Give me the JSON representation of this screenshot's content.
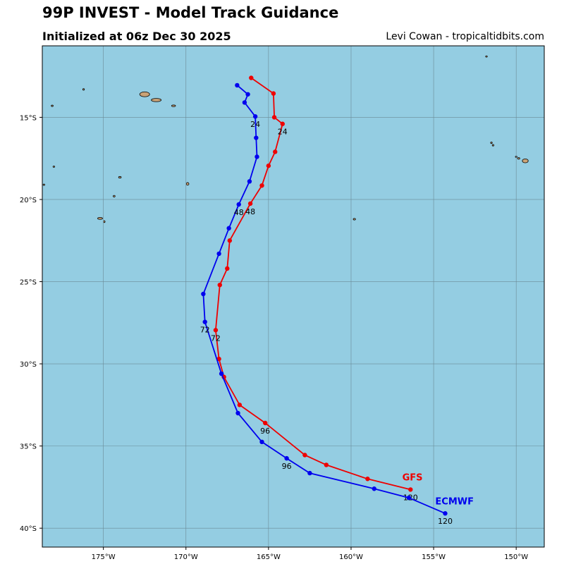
{
  "header": {
    "title": "99P INVEST - Model Track Guidance",
    "subtitle": "Initialized at 06z Dec 30 2025",
    "credit": "Levi Cowan - tropicaltidbits.com"
  },
  "colors": {
    "ocean": "#94cde2",
    "land": "#c9a276",
    "grid": "#6a8a96",
    "gfs": "#ee0000",
    "ecmwf": "#0000ee"
  },
  "map": {
    "lon_range": [
      -178.7,
      -148.3
    ],
    "lat_range": [
      -41.15,
      -10.65
    ],
    "lon_ticks": [
      {
        "value": -175,
        "label": "175°W"
      },
      {
        "value": -170,
        "label": "170°W"
      },
      {
        "value": -165,
        "label": "165°W"
      },
      {
        "value": -160,
        "label": "160°W"
      },
      {
        "value": -155,
        "label": "155°W"
      },
      {
        "value": -150,
        "label": "150°W"
      }
    ],
    "lat_ticks": [
      {
        "value": -15,
        "label": "15°S"
      },
      {
        "value": -20,
        "label": "20°S"
      },
      {
        "value": -25,
        "label": "25°S"
      },
      {
        "value": -30,
        "label": "30°S"
      },
      {
        "value": -35,
        "label": "35°S"
      },
      {
        "value": -40,
        "label": "40°S"
      }
    ],
    "islands": [
      {
        "name": "savaii",
        "lon": -172.5,
        "lat": -13.6,
        "rx": 0.3,
        "ry": 0.15
      },
      {
        "name": "upolu",
        "lon": -171.8,
        "lat": -13.95,
        "rx": 0.3,
        "ry": 0.1
      },
      {
        "name": "tutuila",
        "lon": -170.75,
        "lat": -14.3,
        "rx": 0.12,
        "ry": 0.05
      },
      {
        "name": "rarotonga",
        "lon": -159.8,
        "lat": -21.2,
        "rx": 0.07,
        "ry": 0.05
      },
      {
        "name": "niue",
        "lon": -169.9,
        "lat": -19.05,
        "rx": 0.08,
        "ry": 0.08
      },
      {
        "name": "tahiti",
        "lon": -149.45,
        "lat": -17.65,
        "rx": 0.18,
        "ry": 0.12
      },
      {
        "name": "moorea",
        "lon": -149.85,
        "lat": -17.5,
        "rx": 0.07,
        "ry": 0.05
      },
      {
        "name": "tetiaroa",
        "lon": -151.5,
        "lat": -16.55,
        "rx": 0.05,
        "ry": 0.05
      },
      {
        "name": "atiu",
        "lon": -151.4,
        "lat": -16.7,
        "rx": 0.05,
        "ry": 0.05
      },
      {
        "name": "small-n",
        "lon": -151.8,
        "lat": -11.3,
        "rx": 0.04,
        "ry": 0.04
      },
      {
        "name": "wallis",
        "lon": -176.2,
        "lat": -13.3,
        "rx": 0.05,
        "ry": 0.05
      },
      {
        "name": "futuna",
        "lon": -178.1,
        "lat": -14.3,
        "rx": 0.06,
        "ry": 0.04
      },
      {
        "name": "vavau",
        "lon": -174.0,
        "lat": -18.65,
        "rx": 0.08,
        "ry": 0.05
      },
      {
        "name": "haapai",
        "lon": -174.35,
        "lat": -19.8,
        "rx": 0.06,
        "ry": 0.05
      },
      {
        "name": "tongatapu",
        "lon": -175.2,
        "lat": -21.15,
        "rx": 0.15,
        "ry": 0.06
      },
      {
        "name": "eua",
        "lon": -174.95,
        "lat": -21.35,
        "rx": 0.04,
        "ry": 0.06
      },
      {
        "name": "small-w1",
        "lon": -178.0,
        "lat": -18.0,
        "rx": 0.05,
        "ry": 0.04
      },
      {
        "name": "small-w2",
        "lon": -178.6,
        "lat": -19.1,
        "rx": 0.04,
        "ry": 0.04
      },
      {
        "name": "small-e",
        "lon": -150.0,
        "lat": -17.4,
        "rx": 0.05,
        "ry": 0.04
      }
    ]
  },
  "tracks": [
    {
      "model": "GFS",
      "color": "#ee0000",
      "label_lon": -156.9,
      "label_lat": -37.1,
      "points": [
        {
          "lon": -166.05,
          "lat": -12.6
        },
        {
          "lon": -164.7,
          "lat": -13.55
        },
        {
          "lon": -164.65,
          "lat": -15.0
        },
        {
          "lon": -164.15,
          "lat": -15.4,
          "label": "24"
        },
        {
          "lon": -164.6,
          "lat": -17.1
        },
        {
          "lon": -165.0,
          "lat": -17.95
        },
        {
          "lon": -165.4,
          "lat": -19.15
        },
        {
          "lon": -166.1,
          "lat": -20.25,
          "label": "48"
        },
        {
          "lon": -167.35,
          "lat": -22.5
        },
        {
          "lon": -167.5,
          "lat": -24.2
        },
        {
          "lon": -167.95,
          "lat": -25.2
        },
        {
          "lon": -168.2,
          "lat": -27.95,
          "label": "72"
        },
        {
          "lon": -168.0,
          "lat": -29.7
        },
        {
          "lon": -167.7,
          "lat": -30.8
        },
        {
          "lon": -166.75,
          "lat": -32.5
        },
        {
          "lon": -165.2,
          "lat": -33.6,
          "label": "96"
        },
        {
          "lon": -162.8,
          "lat": -35.55
        },
        {
          "lon": -161.5,
          "lat": -36.15
        },
        {
          "lon": -159.0,
          "lat": -37.0
        },
        {
          "lon": -156.4,
          "lat": -37.65,
          "label": "120"
        }
      ]
    },
    {
      "model": "ECMWF",
      "color": "#0000ee",
      "label_lon": -154.9,
      "label_lat": -38.55,
      "points": [
        {
          "lon": -166.9,
          "lat": -13.05
        },
        {
          "lon": -166.25,
          "lat": -13.6
        },
        {
          "lon": -166.45,
          "lat": -14.1
        },
        {
          "lon": -165.8,
          "lat": -14.95,
          "label": "24"
        },
        {
          "lon": -165.75,
          "lat": -16.25
        },
        {
          "lon": -165.7,
          "lat": -17.4
        },
        {
          "lon": -166.15,
          "lat": -18.9
        },
        {
          "lon": -166.8,
          "lat": -20.3,
          "label": "48"
        },
        {
          "lon": -167.4,
          "lat": -21.75
        },
        {
          "lon": -168.0,
          "lat": -23.3
        },
        {
          "lon": -168.95,
          "lat": -25.75
        },
        {
          "lon": -168.85,
          "lat": -27.45,
          "label": "72"
        },
        {
          "lon": -167.85,
          "lat": -30.6
        },
        {
          "lon": -166.85,
          "lat": -33.0
        },
        {
          "lon": -165.4,
          "lat": -34.75
        },
        {
          "lon": -163.9,
          "lat": -35.75,
          "label": "96"
        },
        {
          "lon": -162.5,
          "lat": -36.65
        },
        {
          "lon": -158.6,
          "lat": -37.6
        },
        {
          "lon": -156.5,
          "lat": -38.15
        },
        {
          "lon": -154.3,
          "lat": -39.1,
          "label": "120"
        }
      ]
    }
  ]
}
